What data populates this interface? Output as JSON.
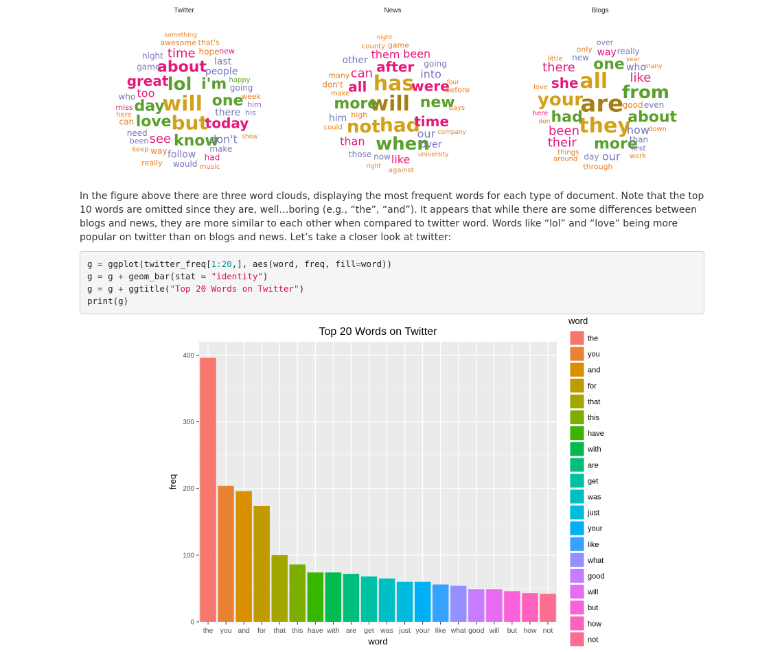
{
  "word_clouds": [
    {
      "title": "Twitter",
      "words": [
        {
          "t": "will",
          "c": "#d4a017",
          "s": 30
        },
        {
          "t": "great",
          "c": "#e6187a",
          "s": 20
        },
        {
          "t": "i'm",
          "c": "#5aa02c",
          "s": 22
        },
        {
          "t": "see",
          "c": "#e6187a",
          "s": 18
        },
        {
          "t": "know",
          "c": "#5aa02c",
          "s": 22
        },
        {
          "t": "about",
          "c": "#e6187a",
          "s": 22
        },
        {
          "t": "lol",
          "c": "#5aa02c",
          "s": 26
        },
        {
          "t": "day",
          "c": "#5aa02c",
          "s": 22
        },
        {
          "t": "one",
          "c": "#5aa02c",
          "s": 22
        },
        {
          "t": "today",
          "c": "#e6187a",
          "s": 20
        },
        {
          "t": "don't",
          "c": "#7777bb",
          "s": 16
        },
        {
          "t": "but",
          "c": "#d4a017",
          "s": 28
        },
        {
          "t": "love",
          "c": "#5aa02c",
          "s": 22
        },
        {
          "t": "time",
          "c": "#e6187a",
          "s": 18
        },
        {
          "t": "people",
          "c": "#7777bb",
          "s": 14
        },
        {
          "t": "too",
          "c": "#e6187a",
          "s": 16
        },
        {
          "t": "there",
          "c": "#7777bb",
          "s": 14
        },
        {
          "t": "follow",
          "c": "#7777bb",
          "s": 14
        },
        {
          "t": "need",
          "c": "#7777bb",
          "s": 12
        },
        {
          "t": "game",
          "c": "#7777bb",
          "s": 12
        },
        {
          "t": "going",
          "c": "#7777bb",
          "s": 12
        },
        {
          "t": "way",
          "c": "#e67e22",
          "s": 12
        },
        {
          "t": "night",
          "c": "#7777bb",
          "s": 12
        },
        {
          "t": "make",
          "c": "#7777bb",
          "s": 12
        },
        {
          "t": "last",
          "c": "#7777bb",
          "s": 14
        },
        {
          "t": "hope",
          "c": "#e67e22",
          "s": 12
        },
        {
          "t": "would",
          "c": "#7777bb",
          "s": 12
        },
        {
          "t": "awesome",
          "c": "#e67e22",
          "s": 11
        },
        {
          "t": "miss",
          "c": "#e6187a",
          "s": 11
        },
        {
          "t": "who",
          "c": "#7777bb",
          "s": 12
        },
        {
          "t": "really",
          "c": "#e67e22",
          "s": 11
        },
        {
          "t": "week",
          "c": "#e67e22",
          "s": 11
        },
        {
          "t": "had",
          "c": "#e6187a",
          "s": 12
        },
        {
          "t": "that's",
          "c": "#e67e22",
          "s": 11
        },
        {
          "t": "can",
          "c": "#e67e22",
          "s": 12
        },
        {
          "t": "his",
          "c": "#7777bb",
          "s": 11
        },
        {
          "t": "happy",
          "c": "#5aa02c",
          "s": 10
        },
        {
          "t": "keep",
          "c": "#e67e22",
          "s": 10
        },
        {
          "t": "new",
          "c": "#e6187a",
          "s": 11
        },
        {
          "t": "been",
          "c": "#7777bb",
          "s": 11
        },
        {
          "t": "show",
          "c": "#e67e22",
          "s": 9
        },
        {
          "t": "him",
          "c": "#7777bb",
          "s": 11
        },
        {
          "t": "here",
          "c": "#e67e22",
          "s": 10
        },
        {
          "t": "music",
          "c": "#e67e22",
          "s": 10
        },
        {
          "t": "something",
          "c": "#e67e22",
          "s": 9
        }
      ]
    },
    {
      "title": "News",
      "words": [
        {
          "t": "after",
          "c": "#e6187a",
          "s": 20
        },
        {
          "t": "our",
          "c": "#7777bb",
          "s": 16
        },
        {
          "t": "can",
          "c": "#e6187a",
          "s": 18
        },
        {
          "t": "were",
          "c": "#e6187a",
          "s": 20
        },
        {
          "t": "will",
          "c": "#a87e12",
          "s": 30
        },
        {
          "t": "more",
          "c": "#5aa02c",
          "s": 22
        },
        {
          "t": "new",
          "c": "#5aa02c",
          "s": 22
        },
        {
          "t": "when",
          "c": "#5aa02c",
          "s": 26
        },
        {
          "t": "into",
          "c": "#7777bb",
          "s": 16
        },
        {
          "t": "all",
          "c": "#e6187a",
          "s": 20
        },
        {
          "t": "time",
          "c": "#e6187a",
          "s": 20
        },
        {
          "t": "them",
          "c": "#e6187a",
          "s": 16
        },
        {
          "t": "like",
          "c": "#e6187a",
          "s": 16
        },
        {
          "t": "than",
          "c": "#e6187a",
          "s": 16
        },
        {
          "t": "other",
          "c": "#7777bb",
          "s": 14
        },
        {
          "t": "been",
          "c": "#e6187a",
          "s": 16
        },
        {
          "t": "not",
          "c": "#d4a017",
          "s": 26
        },
        {
          "t": "has",
          "c": "#d4a017",
          "s": 30
        },
        {
          "t": "had",
          "c": "#d4a017",
          "s": 28
        },
        {
          "t": "over",
          "c": "#7777bb",
          "s": 14
        },
        {
          "t": "him",
          "c": "#7777bb",
          "s": 14
        },
        {
          "t": "now",
          "c": "#7777bb",
          "s": 12
        },
        {
          "t": "game",
          "c": "#e67e22",
          "s": 11
        },
        {
          "t": "those",
          "c": "#7777bb",
          "s": 12
        },
        {
          "t": "don't",
          "c": "#e67e22",
          "s": 12
        },
        {
          "t": "going",
          "c": "#7777bb",
          "s": 12
        },
        {
          "t": "high",
          "c": "#e67e22",
          "s": 11
        },
        {
          "t": "many",
          "c": "#e67e22",
          "s": 11
        },
        {
          "t": "days",
          "c": "#e67e22",
          "s": 10
        },
        {
          "t": "before",
          "c": "#e67e22",
          "s": 11
        },
        {
          "t": "university",
          "c": "#e67e22",
          "s": 9
        },
        {
          "t": "company",
          "c": "#e67e22",
          "s": 9
        },
        {
          "t": "against",
          "c": "#e67e22",
          "s": 10
        },
        {
          "t": "could",
          "c": "#e67e22",
          "s": 10
        },
        {
          "t": "make",
          "c": "#e67e22",
          "s": 10
        },
        {
          "t": "county",
          "c": "#e67e22",
          "s": 10
        },
        {
          "t": "right",
          "c": "#e67e22",
          "s": 9
        },
        {
          "t": "night",
          "c": "#e67e22",
          "s": 9
        },
        {
          "t": "four",
          "c": "#e67e22",
          "s": 9
        }
      ]
    },
    {
      "title": "Blogs",
      "words": [
        {
          "t": "their",
          "c": "#e6187a",
          "s": 18
        },
        {
          "t": "good",
          "c": "#e67e22",
          "s": 12
        },
        {
          "t": "how",
          "c": "#7777bb",
          "s": 16
        },
        {
          "t": "like",
          "c": "#e6187a",
          "s": 18
        },
        {
          "t": "your",
          "c": "#d4a017",
          "s": 26
        },
        {
          "t": "she",
          "c": "#e6187a",
          "s": 20
        },
        {
          "t": "had",
          "c": "#5aa02c",
          "s": 22
        },
        {
          "t": "one",
          "c": "#5aa02c",
          "s": 22
        },
        {
          "t": "more",
          "c": "#5aa02c",
          "s": 22
        },
        {
          "t": "they",
          "c": "#d4a017",
          "s": 30
        },
        {
          "t": "about",
          "c": "#5aa02c",
          "s": 22
        },
        {
          "t": "been",
          "c": "#e6187a",
          "s": 18
        },
        {
          "t": "our",
          "c": "#7777bb",
          "s": 16
        },
        {
          "t": "all",
          "c": "#d4a017",
          "s": 30
        },
        {
          "t": "there",
          "c": "#e6187a",
          "s": 18
        },
        {
          "t": "from",
          "c": "#5aa02c",
          "s": 26
        },
        {
          "t": "are",
          "c": "#a87e12",
          "s": 34
        },
        {
          "t": "way",
          "c": "#e6187a",
          "s": 14
        },
        {
          "t": "only",
          "c": "#e67e22",
          "s": 11
        },
        {
          "t": "new",
          "c": "#7777bb",
          "s": 12
        },
        {
          "t": "who",
          "c": "#7777bb",
          "s": 14
        },
        {
          "t": "than",
          "c": "#7777bb",
          "s": 12
        },
        {
          "t": "even",
          "c": "#7777bb",
          "s": 12
        },
        {
          "t": "down",
          "c": "#e67e22",
          "s": 10
        },
        {
          "t": "over",
          "c": "#7777bb",
          "s": 11
        },
        {
          "t": "through",
          "c": "#e67e22",
          "s": 11
        },
        {
          "t": "day",
          "c": "#7777bb",
          "s": 12
        },
        {
          "t": "things",
          "c": "#e67e22",
          "s": 10
        },
        {
          "t": "around",
          "c": "#e67e22",
          "s": 10
        },
        {
          "t": "love",
          "c": "#e67e22",
          "s": 10
        },
        {
          "t": "work",
          "c": "#e67e22",
          "s": 10
        },
        {
          "t": "year",
          "c": "#e67e22",
          "s": 9
        },
        {
          "t": "don",
          "c": "#e67e22",
          "s": 9
        },
        {
          "t": "here",
          "c": "#e6187a",
          "s": 10
        },
        {
          "t": "really",
          "c": "#7777bb",
          "s": 12
        },
        {
          "t": "first",
          "c": "#7777bb",
          "s": 11
        },
        {
          "t": "little",
          "c": "#e67e22",
          "s": 10
        },
        {
          "t": "many",
          "c": "#e67e22",
          "s": 9
        }
      ]
    }
  ],
  "paragraph": "In the figure above there are three word clouds, displaying the most frequent words for each type of document. Note that the top 10 words are omitted since they are, well…boring (e.g., “the”, “and”). It appears that while there are some differences between blogs and news, they are more similar to each other when compared to twitter word. Words like “lol” and “love” being more popular on twitter than on blogs and news. Let’s take a closer look at twitter:",
  "code": {
    "lines": [
      "g = ggplot(twitter_freq[1:20,], aes(word, freq, fill=word))",
      "g = g + geom_bar(stat = \"identity\")",
      "g = g + ggtitle(\"Top 20 Words on Twitter\")",
      "print(g)"
    ]
  },
  "chart_data": {
    "type": "bar",
    "title": "Top 20 Words on Twitter",
    "xlabel": "word",
    "ylabel": "freq",
    "legend_title": "word",
    "legend_position": "right",
    "ylim": [
      0,
      420
    ],
    "yticks": [
      0,
      100,
      200,
      300,
      400
    ],
    "grid": true,
    "categories": [
      "the",
      "you",
      "and",
      "for",
      "that",
      "this",
      "have",
      "with",
      "are",
      "get",
      "was",
      "just",
      "your",
      "like",
      "what",
      "good",
      "will",
      "but",
      "how",
      "not"
    ],
    "values": [
      396,
      204,
      196,
      174,
      100,
      86,
      74,
      74,
      72,
      68,
      65,
      60,
      60,
      56,
      54,
      49,
      49,
      46,
      43,
      42
    ],
    "colors": [
      "#F8766D",
      "#EA8331",
      "#D89000",
      "#C09B00",
      "#A3A500",
      "#7CAE00",
      "#39B600",
      "#00BB4E",
      "#00BF7D",
      "#00C1A3",
      "#00BFC4",
      "#00BAE0",
      "#00B0F6",
      "#35A2FF",
      "#9590FF",
      "#C77CFF",
      "#E76BF3",
      "#FA62DB",
      "#FF62BC",
      "#FF6C91"
    ]
  }
}
